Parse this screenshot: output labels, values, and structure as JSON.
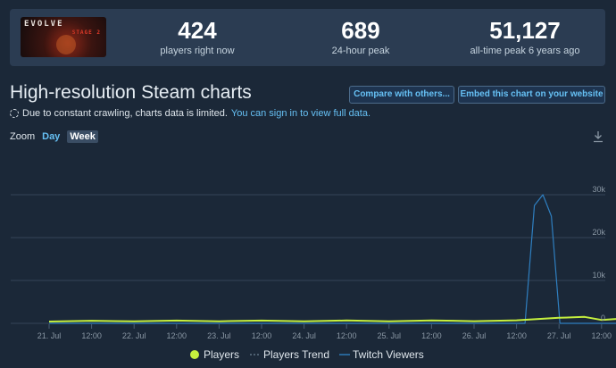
{
  "game": {
    "logo_text": "EVOLVE",
    "logo_sub": "STAGE 2"
  },
  "stats": {
    "players_now": {
      "value": "424",
      "label": "players right now"
    },
    "peak_24h": {
      "value": "689",
      "label": "24-hour peak"
    },
    "all_time": {
      "value": "51,127",
      "label": "all-time peak 6 years ago"
    }
  },
  "header": {
    "title": "High-resolution Steam charts",
    "compare_button": "Compare with others...",
    "embed_button": "Embed this chart on your website"
  },
  "notice": {
    "text": "Due to constant crawling, charts data is limited.",
    "link": "You can sign in to view full data."
  },
  "zoom": {
    "label": "Zoom",
    "day": "Day",
    "week": "Week"
  },
  "colors": {
    "players": "#c5f03e",
    "twitch": "#2f7fc0",
    "trend": "#6e8193",
    "grid": "#344558"
  },
  "chart_data": {
    "type": "line",
    "x_ticks": [
      "21. Jul",
      "12:00",
      "22. Jul",
      "12:00",
      "23. Jul",
      "12:00",
      "24. Jul",
      "12:00",
      "25. Jul",
      "12:00",
      "26. Jul",
      "12:00",
      "27. Jul",
      "12:00"
    ],
    "y_ticks": [
      "0",
      "10k",
      "20k",
      "30k"
    ],
    "ylim": [
      0,
      35000
    ],
    "legend_position": "bottom-center",
    "series": [
      {
        "name": "Players",
        "points": [
          [
            0,
            420
          ],
          [
            1,
            600
          ],
          [
            2,
            450
          ],
          [
            3,
            640
          ],
          [
            4,
            470
          ],
          [
            5,
            650
          ],
          [
            6,
            460
          ],
          [
            7,
            660
          ],
          [
            8,
            480
          ],
          [
            9,
            690
          ],
          [
            10,
            500
          ],
          [
            11,
            700
          ],
          [
            12,
            1300
          ],
          [
            12.6,
            1500
          ],
          [
            13,
            800
          ],
          [
            13.6,
            1200
          ]
        ]
      },
      {
        "name": "Players Trend",
        "points": []
      },
      {
        "name": "Twitch Viewers",
        "points": [
          [
            0,
            0
          ],
          [
            11.2,
            0
          ],
          [
            11.42,
            27500
          ],
          [
            11.62,
            30000
          ],
          [
            11.82,
            25000
          ],
          [
            12.02,
            0
          ],
          [
            13.6,
            0
          ]
        ]
      }
    ]
  }
}
